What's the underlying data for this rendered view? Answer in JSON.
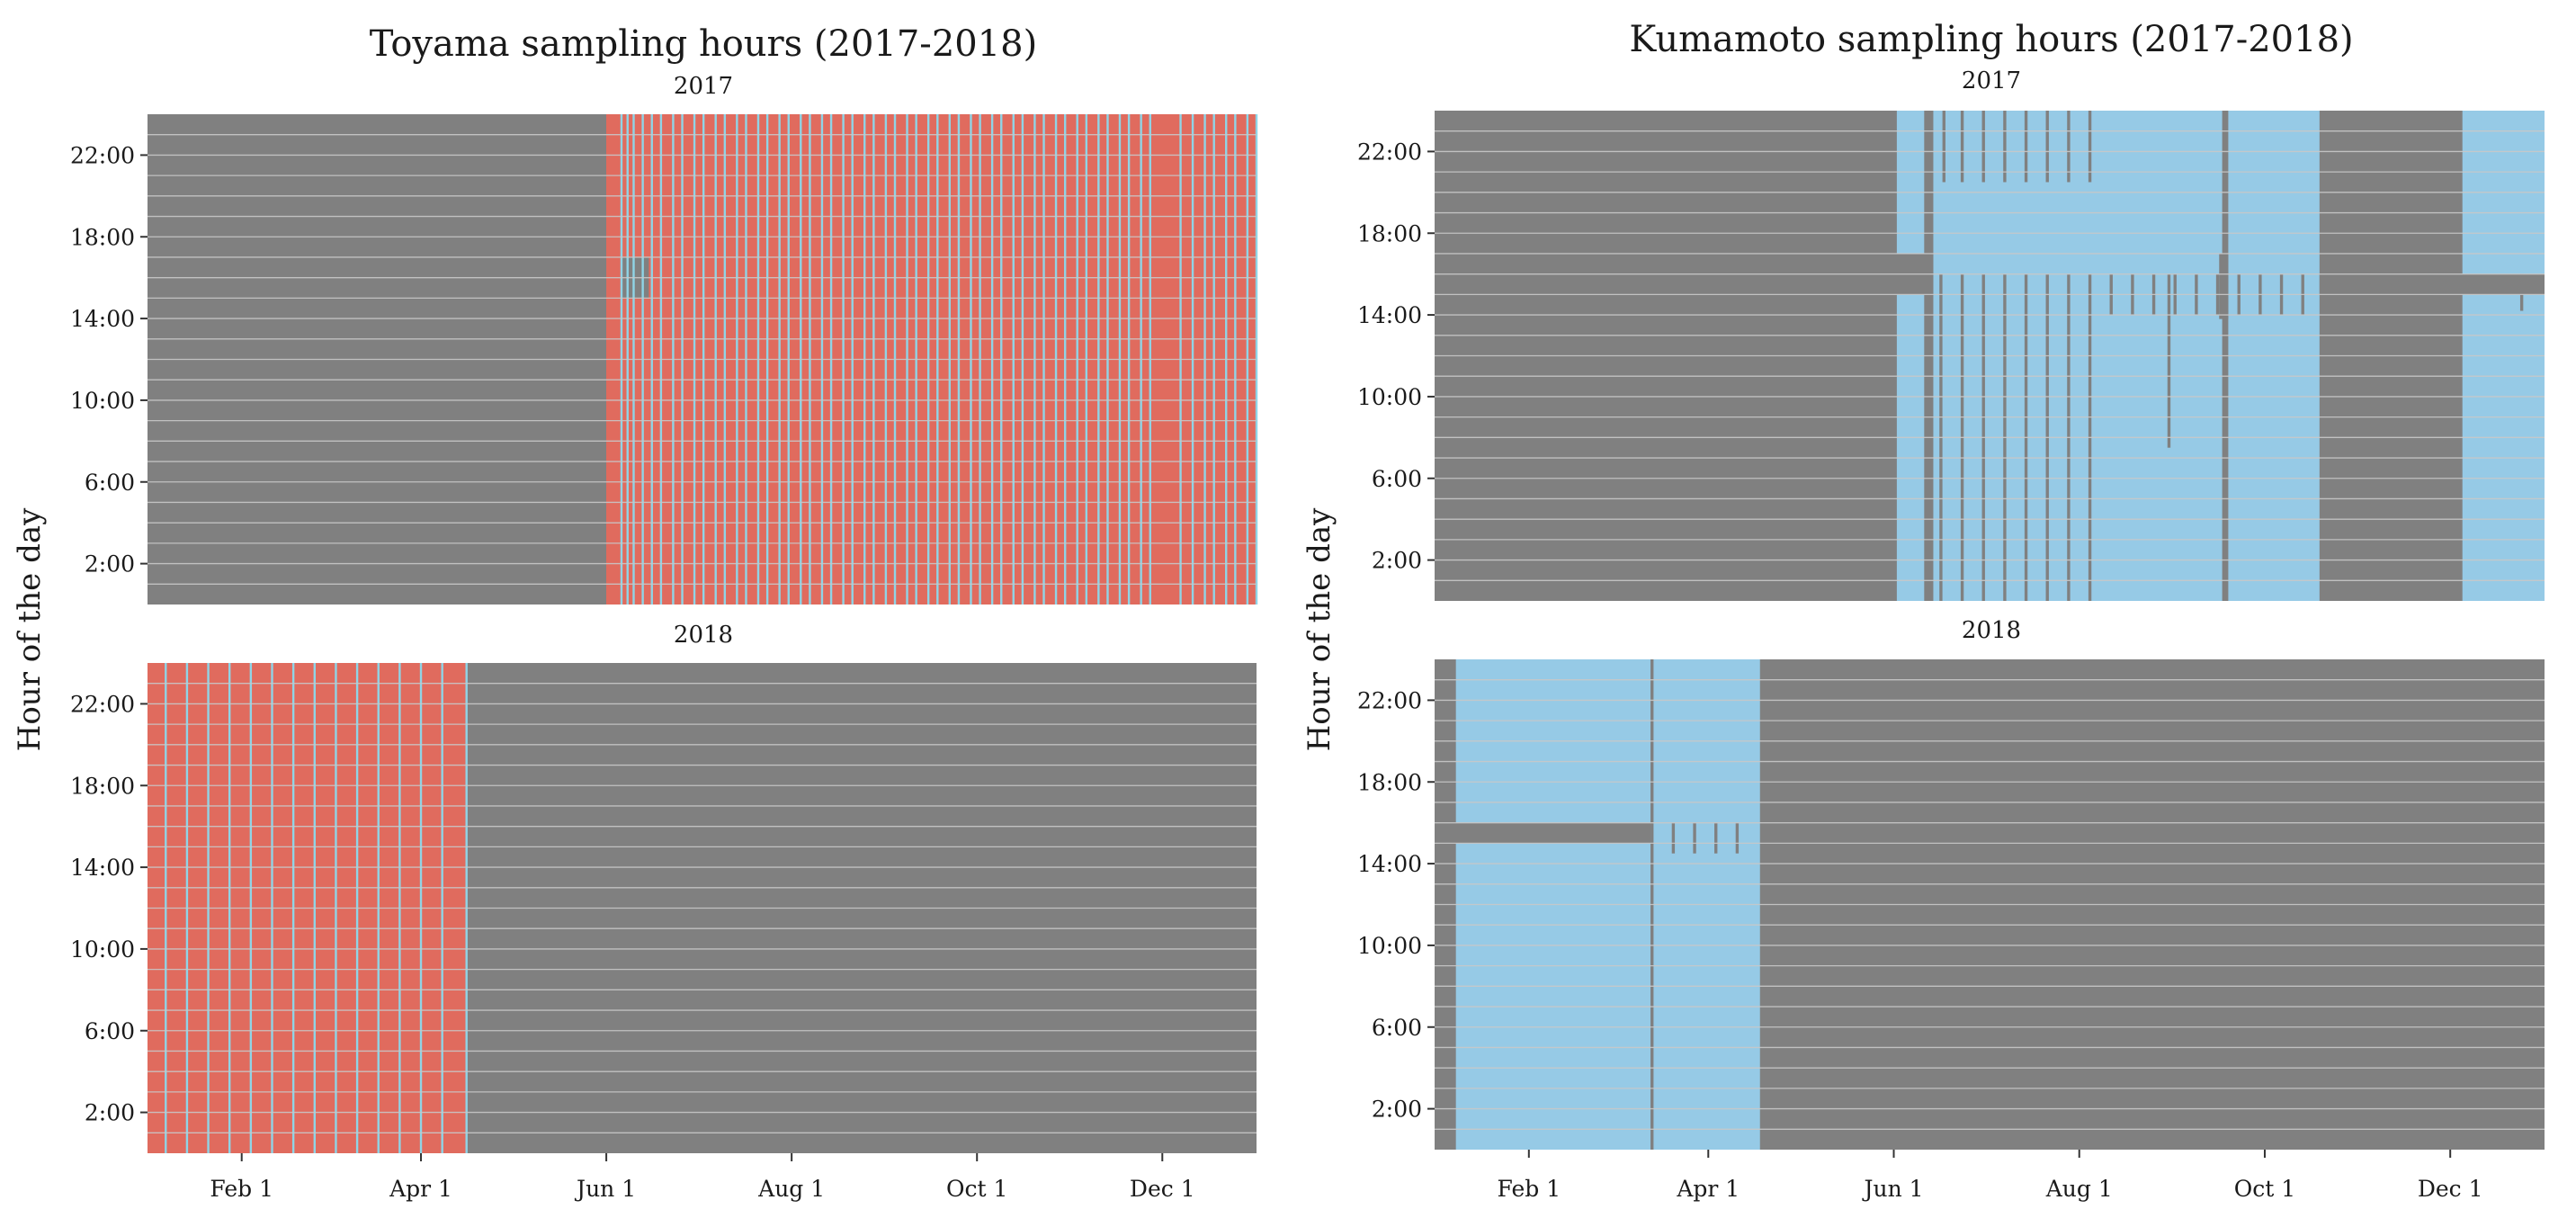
{
  "colors": {
    "missing": "#808080",
    "gridline": "#c8c8c8",
    "toyama_sample": "#e06b5e",
    "toyama_separator": "#8fd4e6",
    "kumamoto_sample": "#96cae6",
    "tick_mark": "#333333",
    "background": "#ffffff"
  },
  "chart_data": [
    {
      "type": "heatmap",
      "title": "Toyama sampling hours (2017-2018)",
      "ylabel": "Hour of the day",
      "xlabel": "",
      "x_unit": "day of year",
      "xlim": [
        1,
        366
      ],
      "ylim": [
        0,
        24
      ],
      "y_ticks": [
        2,
        6,
        10,
        14,
        18,
        22
      ],
      "y_tick_labels": [
        "2:00",
        "6:00",
        "10:00",
        "14:00",
        "18:00",
        "22:00"
      ],
      "x_ticks": [
        32,
        91,
        152,
        213,
        274,
        335
      ],
      "x_tick_labels": [
        "Feb 1",
        "Apr 1",
        "Jun 1",
        "Aug 1",
        "Oct 1",
        "Dec 1"
      ],
      "grid": "horizontal lines at every hour",
      "default_color": "missing",
      "facets": [
        {
          "label": "2017",
          "cells": [
            {
              "start": 152,
              "end": 366,
              "h0": 0,
              "h1": 24,
              "color": "toyama_sample"
            },
            {
              "start": 1,
              "end": 166,
              "h0": 15,
              "h1": 17,
              "color": "missing"
            }
          ],
          "separator_days": [
            157,
            159,
            161,
            164,
            167,
            170,
            174,
            177,
            181,
            184,
            188,
            191,
            195,
            198,
            202,
            205,
            209,
            212,
            216,
            219,
            223,
            226,
            230,
            233,
            237,
            240,
            244,
            247,
            251,
            254,
            258,
            261,
            265,
            268,
            272,
            275,
            279,
            282,
            286,
            289,
            293,
            296,
            300,
            303,
            307,
            310,
            314,
            317,
            321,
            324,
            328,
            331,
            341,
            345,
            349,
            352,
            356,
            359,
            363,
            366
          ],
          "red_bands": [
            [
              152,
              157
            ],
            [
              334,
              340
            ]
          ]
        },
        {
          "label": "2018",
          "cells": [
            {
              "start": 1,
              "end": 106,
              "h0": 0,
              "h1": 24,
              "color": "toyama_sample"
            }
          ],
          "separator_days": [
            7,
            14,
            21,
            28,
            35,
            42,
            49,
            56,
            63,
            70,
            77,
            84,
            91,
            98,
            106
          ],
          "red_bands": []
        }
      ]
    },
    {
      "type": "heatmap",
      "title": "Kumamoto sampling hours (2017-2018)",
      "ylabel": "Hour of the day",
      "xlabel": "",
      "x_unit": "day of year",
      "xlim": [
        1,
        366
      ],
      "ylim": [
        0,
        24
      ],
      "y_ticks": [
        2,
        6,
        10,
        14,
        18,
        22
      ],
      "y_tick_labels": [
        "2:00",
        "6:00",
        "10:00",
        "14:00",
        "18:00",
        "22:00"
      ],
      "x_ticks": [
        32,
        91,
        152,
        213,
        274,
        335
      ],
      "x_tick_labels": [
        "Feb 1",
        "Apr 1",
        "Jun 1",
        "Aug 1",
        "Oct 1",
        "Dec 1"
      ],
      "grid": "horizontal lines at every hour",
      "default_color": "missing",
      "facets": [
        {
          "label": "2017",
          "cells": [
            {
              "start": 153,
              "end": 292,
              "h0": 0,
              "h1": 24,
              "color": "kumamoto_sample"
            },
            {
              "start": 339,
              "end": 366,
              "h0": 0,
              "h1": 24,
              "color": "kumamoto_sample"
            },
            {
              "start": 162,
              "end": 165,
              "h0": 0,
              "h1": 24,
              "color": "missing"
            },
            {
              "start": 1,
              "end": 165,
              "h0": 15,
              "h1": 17,
              "color": "missing"
            },
            {
              "start": 292,
              "end": 366,
              "h0": 15,
              "h1": 16,
              "color": "missing"
            },
            {
              "start": 260,
              "end": 262,
              "h0": 0,
              "h1": 24,
              "color": "missing"
            },
            {
              "start": 259,
              "end": 262,
              "h0": 13.8,
              "h1": 17,
              "color": "missing"
            },
            {
              "start": 242,
              "end": 243,
              "h0": 7.5,
              "h1": 16,
              "color": "missing"
            },
            {
              "start": 358,
              "end": 359,
              "h0": 14.2,
              "h1": 16,
              "color": "missing"
            },
            {
              "start": 168,
              "end": 169,
              "h0": 20.5,
              "h1": 24,
              "color": "missing"
            },
            {
              "start": 174,
              "end": 175,
              "h0": 20.5,
              "h1": 24,
              "color": "missing"
            },
            {
              "start": 181,
              "end": 182,
              "h0": 20.5,
              "h1": 24,
              "color": "missing"
            },
            {
              "start": 188,
              "end": 189,
              "h0": 20.5,
              "h1": 24,
              "color": "missing"
            },
            {
              "start": 195,
              "end": 196,
              "h0": 20.5,
              "h1": 24,
              "color": "missing"
            },
            {
              "start": 202,
              "end": 203,
              "h0": 20.5,
              "h1": 24,
              "color": "missing"
            },
            {
              "start": 209,
              "end": 210,
              "h0": 20.5,
              "h1": 24,
              "color": "missing"
            },
            {
              "start": 216,
              "end": 217,
              "h0": 20.5,
              "h1": 24,
              "color": "missing"
            },
            {
              "start": 167,
              "end": 168,
              "h0": 0,
              "h1": 16,
              "color": "missing"
            },
            {
              "start": 174,
              "end": 175,
              "h0": 0,
              "h1": 16,
              "color": "missing"
            },
            {
              "start": 181,
              "end": 182,
              "h0": 0,
              "h1": 16,
              "color": "missing"
            },
            {
              "start": 188,
              "end": 189,
              "h0": 0,
              "h1": 16,
              "color": "missing"
            },
            {
              "start": 195,
              "end": 196,
              "h0": 0,
              "h1": 16,
              "color": "missing"
            },
            {
              "start": 202,
              "end": 203,
              "h0": 0,
              "h1": 16,
              "color": "missing"
            },
            {
              "start": 209,
              "end": 210,
              "h0": 0,
              "h1": 16,
              "color": "missing"
            },
            {
              "start": 216,
              "end": 217,
              "h0": 0,
              "h1": 16,
              "color": "missing"
            },
            {
              "start": 223,
              "end": 224,
              "h0": 14,
              "h1": 16,
              "color": "missing"
            },
            {
              "start": 230,
              "end": 231,
              "h0": 14,
              "h1": 16,
              "color": "missing"
            },
            {
              "start": 237,
              "end": 238,
              "h0": 14,
              "h1": 16,
              "color": "missing"
            },
            {
              "start": 244,
              "end": 245,
              "h0": 14,
              "h1": 16,
              "color": "missing"
            },
            {
              "start": 251,
              "end": 252,
              "h0": 14,
              "h1": 16,
              "color": "missing"
            },
            {
              "start": 258,
              "end": 259,
              "h0": 14,
              "h1": 16,
              "color": "missing"
            },
            {
              "start": 265,
              "end": 266,
              "h0": 14,
              "h1": 16,
              "color": "missing"
            },
            {
              "start": 272,
              "end": 273,
              "h0": 14,
              "h1": 16,
              "color": "missing"
            },
            {
              "start": 279,
              "end": 280,
              "h0": 14,
              "h1": 16,
              "color": "missing"
            },
            {
              "start": 286,
              "end": 287,
              "h0": 14,
              "h1": 16,
              "color": "missing"
            }
          ]
        },
        {
          "label": "2018",
          "cells": [
            {
              "start": 8,
              "end": 108,
              "h0": 0,
              "h1": 24,
              "color": "kumamoto_sample"
            },
            {
              "start": 1,
              "end": 72,
              "h0": 15,
              "h1": 16,
              "color": "missing"
            },
            {
              "start": 72,
              "end": 73,
              "h0": 0,
              "h1": 24,
              "color": "missing"
            },
            {
              "start": 79,
              "end": 80,
              "h0": 14.5,
              "h1": 16,
              "color": "missing"
            },
            {
              "start": 86,
              "end": 87,
              "h0": 14.5,
              "h1": 16,
              "color": "missing"
            },
            {
              "start": 93,
              "end": 94,
              "h0": 14.5,
              "h1": 16,
              "color": "missing"
            },
            {
              "start": 100,
              "end": 101,
              "h0": 14.5,
              "h1": 16,
              "color": "missing"
            }
          ]
        }
      ]
    }
  ]
}
